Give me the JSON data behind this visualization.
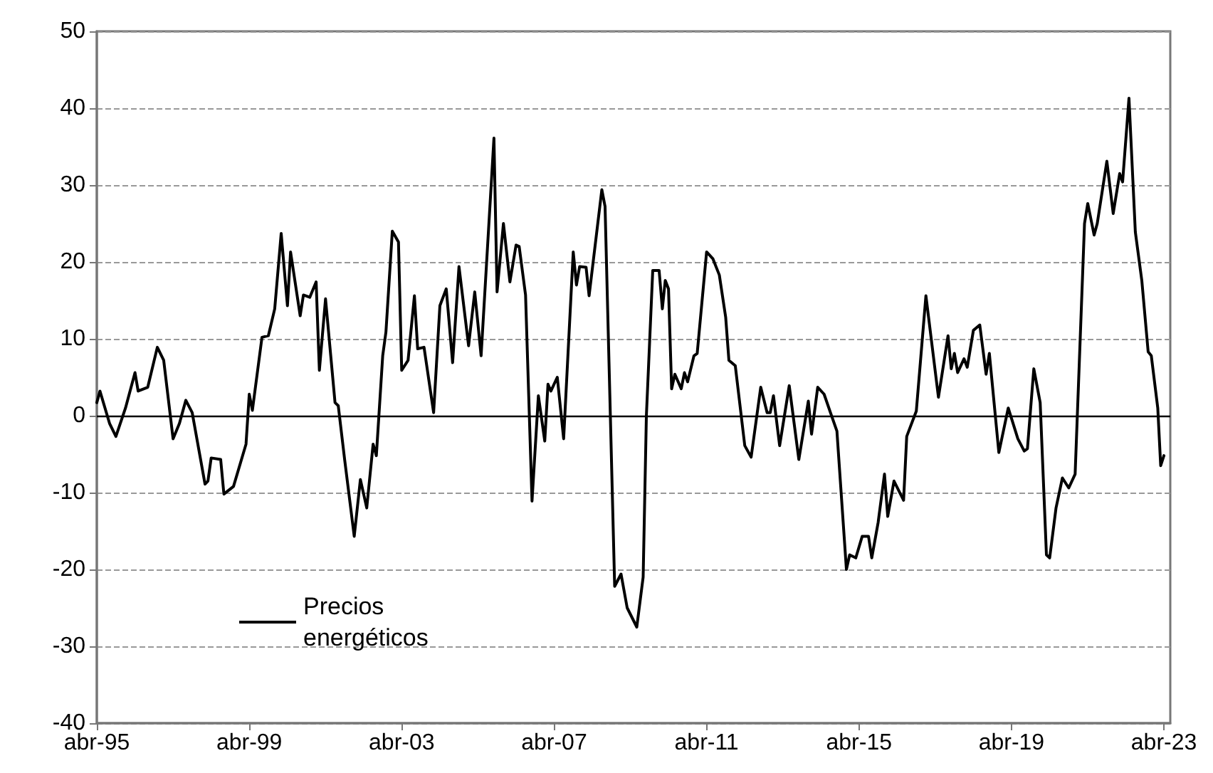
{
  "chart_data": {
    "type": "line",
    "xlim": [
      "1995-04",
      "2023-06"
    ],
    "xticks": [
      {
        "value": "1995-04",
        "label": "abr-95"
      },
      {
        "value": "1999-04",
        "label": "abr-99"
      },
      {
        "value": "2003-04",
        "label": "abr-03"
      },
      {
        "value": "2007-04",
        "label": "abr-07"
      },
      {
        "value": "2011-04",
        "label": "abr-11"
      },
      {
        "value": "2015-04",
        "label": "abr-15"
      },
      {
        "value": "2019-04",
        "label": "abr-19"
      },
      {
        "value": "2023-04",
        "label": "abr-23"
      }
    ],
    "ylim": [
      -40,
      50
    ],
    "yticks": [
      -40,
      -30,
      -20,
      -10,
      0,
      10,
      20,
      30,
      40,
      50
    ],
    "grid": "y",
    "legend": "bottom left",
    "marker": "none",
    "line_style": "solid",
    "ref_lines": [
      {
        "axis": "y",
        "value": 0,
        "color": "#000000"
      }
    ],
    "series": [
      {
        "name": "Precios energéticos",
        "color": "#000000",
        "x": [
          "1995-04",
          "1995-05",
          "1995-08",
          "1995-10",
          "1996-01",
          "1996-04",
          "1996-05",
          "1996-08",
          "1996-11",
          "1997-01",
          "1997-04",
          "1997-06",
          "1997-08",
          "1997-10",
          "1998-02",
          "1998-03",
          "1998-04",
          "1998-07",
          "1998-08",
          "1998-11",
          "1999-03",
          "1999-04",
          "1999-05",
          "1999-08",
          "1999-10",
          "1999-12",
          "2000-02",
          "2000-04",
          "2000-05",
          "2000-08",
          "2000-09",
          "2000-11",
          "2001-01",
          "2001-02",
          "2001-04",
          "2001-07",
          "2001-08",
          "2001-10",
          "2002-01",
          "2002-03",
          "2002-05",
          "2002-07",
          "2002-08",
          "2002-10",
          "2002-11",
          "2003-01",
          "2003-03",
          "2003-04",
          "2003-06",
          "2003-08",
          "2003-09",
          "2003-11",
          "2004-02",
          "2004-04",
          "2004-06",
          "2004-08",
          "2004-10",
          "2005-01",
          "2005-03",
          "2005-05",
          "2005-09",
          "2005-10",
          "2005-12",
          "2006-02",
          "2006-04",
          "2006-05",
          "2006-07",
          "2006-09",
          "2006-11",
          "2007-01",
          "2007-02",
          "2007-03",
          "2007-05",
          "2007-07",
          "2007-10",
          "2007-11",
          "2007-12",
          "2008-02",
          "2008-03",
          "2008-07",
          "2008-08",
          "2008-11",
          "2009-01",
          "2009-03",
          "2009-06",
          "2009-08",
          "2009-09",
          "2009-11",
          "2010-01",
          "2010-02",
          "2010-03",
          "2010-04",
          "2010-05",
          "2010-06",
          "2010-08",
          "2010-09",
          "2010-10",
          "2010-12",
          "2011-01",
          "2011-04",
          "2011-06",
          "2011-08",
          "2011-10",
          "2011-11",
          "2012-01",
          "2012-04",
          "2012-06",
          "2012-09",
          "2012-11",
          "2012-12",
          "2013-01",
          "2013-03",
          "2013-06",
          "2013-09",
          "2013-12",
          "2014-01",
          "2014-03",
          "2014-05",
          "2014-07",
          "2014-09",
          "2014-12",
          "2015-01",
          "2015-03",
          "2015-05",
          "2015-07",
          "2015-08",
          "2015-10",
          "2015-12",
          "2016-01",
          "2016-03",
          "2016-06",
          "2016-07",
          "2016-10",
          "2017-01",
          "2017-05",
          "2017-08",
          "2017-09",
          "2017-10",
          "2017-11",
          "2018-01",
          "2018-02",
          "2018-04",
          "2018-06",
          "2018-08",
          "2018-09",
          "2018-12",
          "2019-03",
          "2019-06",
          "2019-08",
          "2019-09",
          "2019-11",
          "2020-01",
          "2020-03",
          "2020-04",
          "2020-06",
          "2020-08",
          "2020-10",
          "2020-12",
          "2021-03",
          "2021-04",
          "2021-06",
          "2021-07",
          "2021-10",
          "2021-12",
          "2022-02",
          "2022-03",
          "2022-05",
          "2022-07",
          "2022-09",
          "2022-11",
          "2022-12",
          "2023-02",
          "2023-03",
          "2023-04"
        ],
        "values": [
          1.7,
          3.2,
          -1,
          -2.7,
          1,
          5.6,
          3.2,
          3.7,
          8.9,
          7.2,
          -3,
          -1,
          2,
          0.4,
          -8.9,
          -8.5,
          -5.5,
          -5.7,
          -10.2,
          -9.2,
          -3.7,
          2.8,
          0.7,
          10.2,
          10.4,
          13.9,
          23.7,
          14.3,
          21.3,
          13,
          15.7,
          15.4,
          17.4,
          5.9,
          15.2,
          1.7,
          1.3,
          -5.7,
          -15.7,
          -8.3,
          -12,
          -3.7,
          -5.2,
          7.8,
          10.9,
          24,
          22.6,
          5.9,
          7.2,
          15.6,
          8.7,
          8.9,
          0.4,
          14.3,
          16.5,
          6.9,
          19.4,
          9.1,
          16.1,
          7.8,
          36.1,
          16.1,
          25,
          17.4,
          22.2,
          22,
          15.7,
          -11.1,
          2.6,
          -3.3,
          4.1,
          3.2,
          5,
          -3,
          21.3,
          17,
          19.4,
          19.3,
          15.6,
          29.4,
          27.2,
          -22.2,
          -20.6,
          -25,
          -27.5,
          -21,
          0,
          18.9,
          18.9,
          13.9,
          17.6,
          16.5,
          3.5,
          5.4,
          3.5,
          5.6,
          4.4,
          7.8,
          8.1,
          21.3,
          20.4,
          18.3,
          12.8,
          7.2,
          6.5,
          -3.9,
          -5.4,
          3.7,
          0.4,
          0.4,
          2.6,
          -3.9,
          3.9,
          -5.7,
          1.9,
          -2.4,
          3.7,
          2.8,
          0.4,
          -2,
          -20,
          -18.1,
          -18.5,
          -15.7,
          -15.7,
          -18.5,
          -13.9,
          -7.6,
          -13.1,
          -8.5,
          -11,
          -2.7,
          0.6,
          15.6,
          2.4,
          10.4,
          6.1,
          8.1,
          5.6,
          7.4,
          6.3,
          11.1,
          11.8,
          5.4,
          8.1,
          -4.8,
          1,
          -3,
          -4.6,
          -4.3,
          6.1,
          1.7,
          -18.1,
          -18.5,
          -12,
          -8.1,
          -9.4,
          -7.6,
          25,
          27.6,
          23.5,
          25,
          33.1,
          26.3,
          31.5,
          30.4,
          41.3,
          23.9,
          17.6,
          8.3,
          7.8,
          1,
          -6.5,
          -5.2
        ]
      }
    ]
  }
}
